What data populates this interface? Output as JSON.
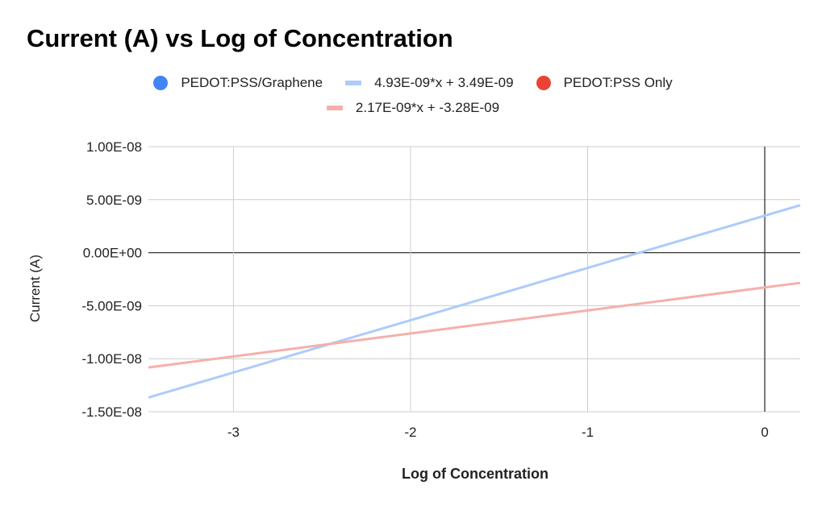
{
  "chart_data": {
    "type": "scatter",
    "title": "Current (A) vs Log of Concentration",
    "xlabel": "Log of Concentration",
    "ylabel": "Current (A)",
    "xlim": [
      -3.48,
      0.2
    ],
    "ylim": [
      -1.5e-08,
      1e-08
    ],
    "x_ticks": [
      {
        "value": -3,
        "label": "-3"
      },
      {
        "value": -2,
        "label": "-2"
      },
      {
        "value": -1,
        "label": "-1"
      },
      {
        "value": 0,
        "label": "0"
      }
    ],
    "y_ticks": [
      {
        "value": 1e-08,
        "label": "1.00E-08"
      },
      {
        "value": 5e-09,
        "label": "5.00E-09"
      },
      {
        "value": 0,
        "label": "0.00E+00"
      },
      {
        "value": -5e-09,
        "label": "-5.00E-09"
      },
      {
        "value": -1e-08,
        "label": "-1.00E-08"
      },
      {
        "value": -1.5e-08,
        "label": "-1.50E-08"
      }
    ],
    "grid": true,
    "legend_position": "top",
    "legend": [
      {
        "label": "PEDOT:PSS/Graphene",
        "marker": "dot",
        "color": "#4285f4"
      },
      {
        "label": "4.93E-09*x + 3.49E-09",
        "marker": "dash",
        "color": "#aecbfa"
      },
      {
        "label": "PEDOT:PSS Only",
        "marker": "dot",
        "color": "#ea4335"
      },
      {
        "label": "2.17E-09*x + -3.28E-09",
        "marker": "dash",
        "color": "#f4b0ab"
      }
    ],
    "series": [
      {
        "name": "PEDOT:PSS/Graphene",
        "kind": "points",
        "color": "#4285f4",
        "points": []
      },
      {
        "name": "PEDOT:PSS Only",
        "kind": "points",
        "color": "#ea4335",
        "points": []
      }
    ],
    "trendlines": [
      {
        "label": "4.93E-09*x + 3.49E-09",
        "slope": 4.93e-09,
        "intercept": 3.49e-09,
        "color": "#aecbfa"
      },
      {
        "label": "2.17E-09*x + -3.28E-09",
        "slope": 2.17e-09,
        "intercept": -3.28e-09,
        "color": "#f4b0ab"
      }
    ]
  }
}
